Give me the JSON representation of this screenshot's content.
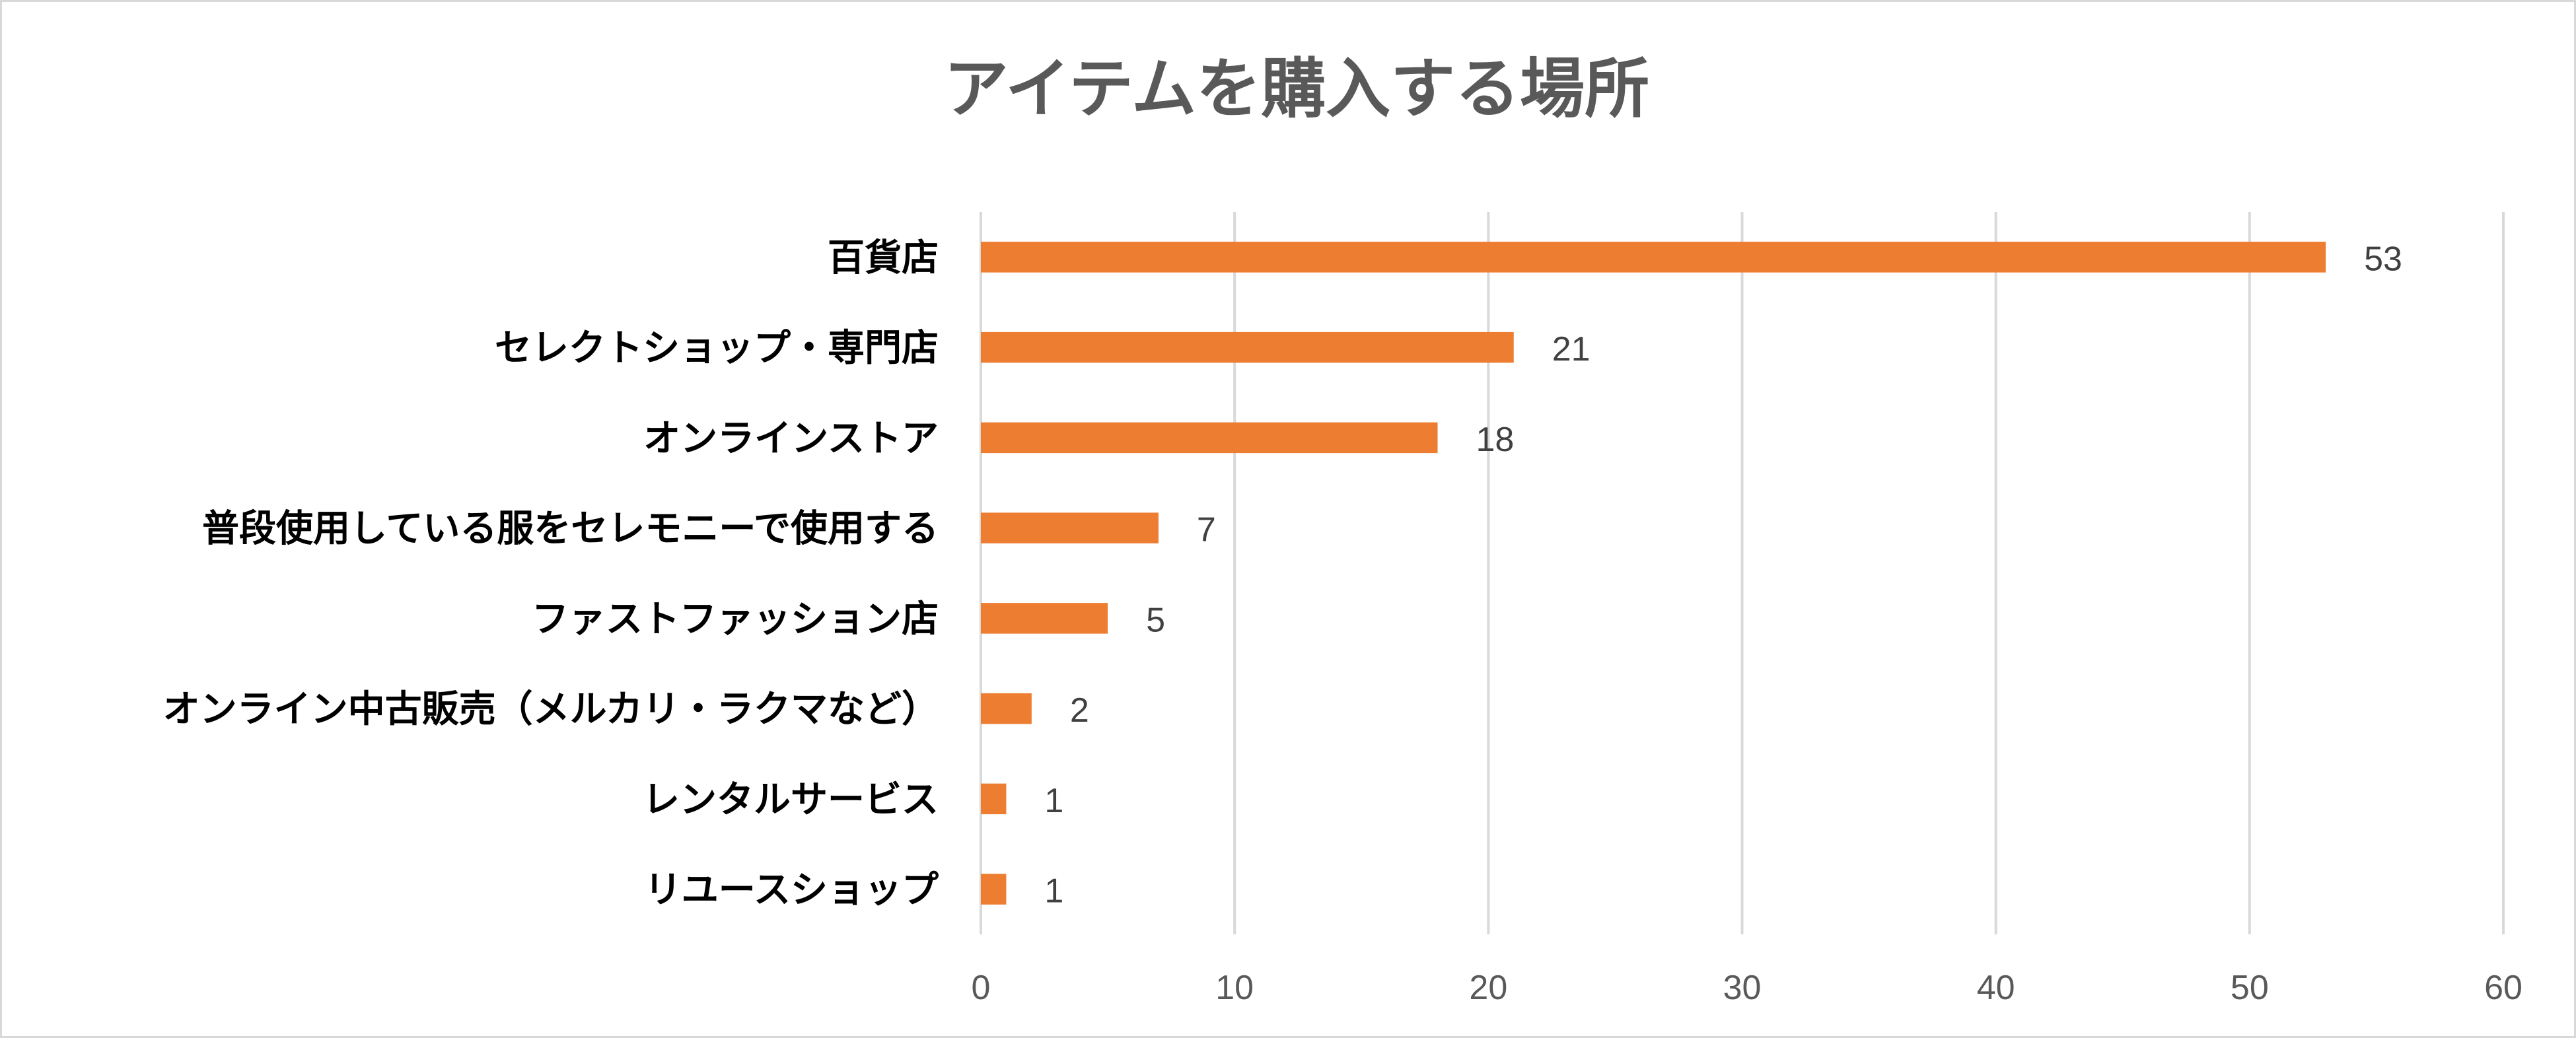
{
  "chart_data": {
    "type": "bar",
    "orientation": "horizontal",
    "title": "アイテムを購入する場所",
    "categories": [
      "百貨店",
      "セレクトショップ・専門店",
      "オンラインストア",
      "普段使用している服をセレモニーで使用する",
      "ファストファッション店",
      "オンライン中古販売（メルカリ・ラクマなど）",
      "レンタルサービス",
      "リユースショップ"
    ],
    "values": [
      53,
      21,
      18,
      7,
      5,
      2,
      1,
      1
    ],
    "xlim": [
      0,
      60
    ],
    "xticks": [
      0,
      10,
      20,
      30,
      40,
      50,
      60
    ],
    "grid": true,
    "legend": "none",
    "data_labels": true,
    "colors": {
      "bar": "#ED7D31",
      "grid": "#D9D9D9",
      "border": "#D9D9D9"
    }
  }
}
